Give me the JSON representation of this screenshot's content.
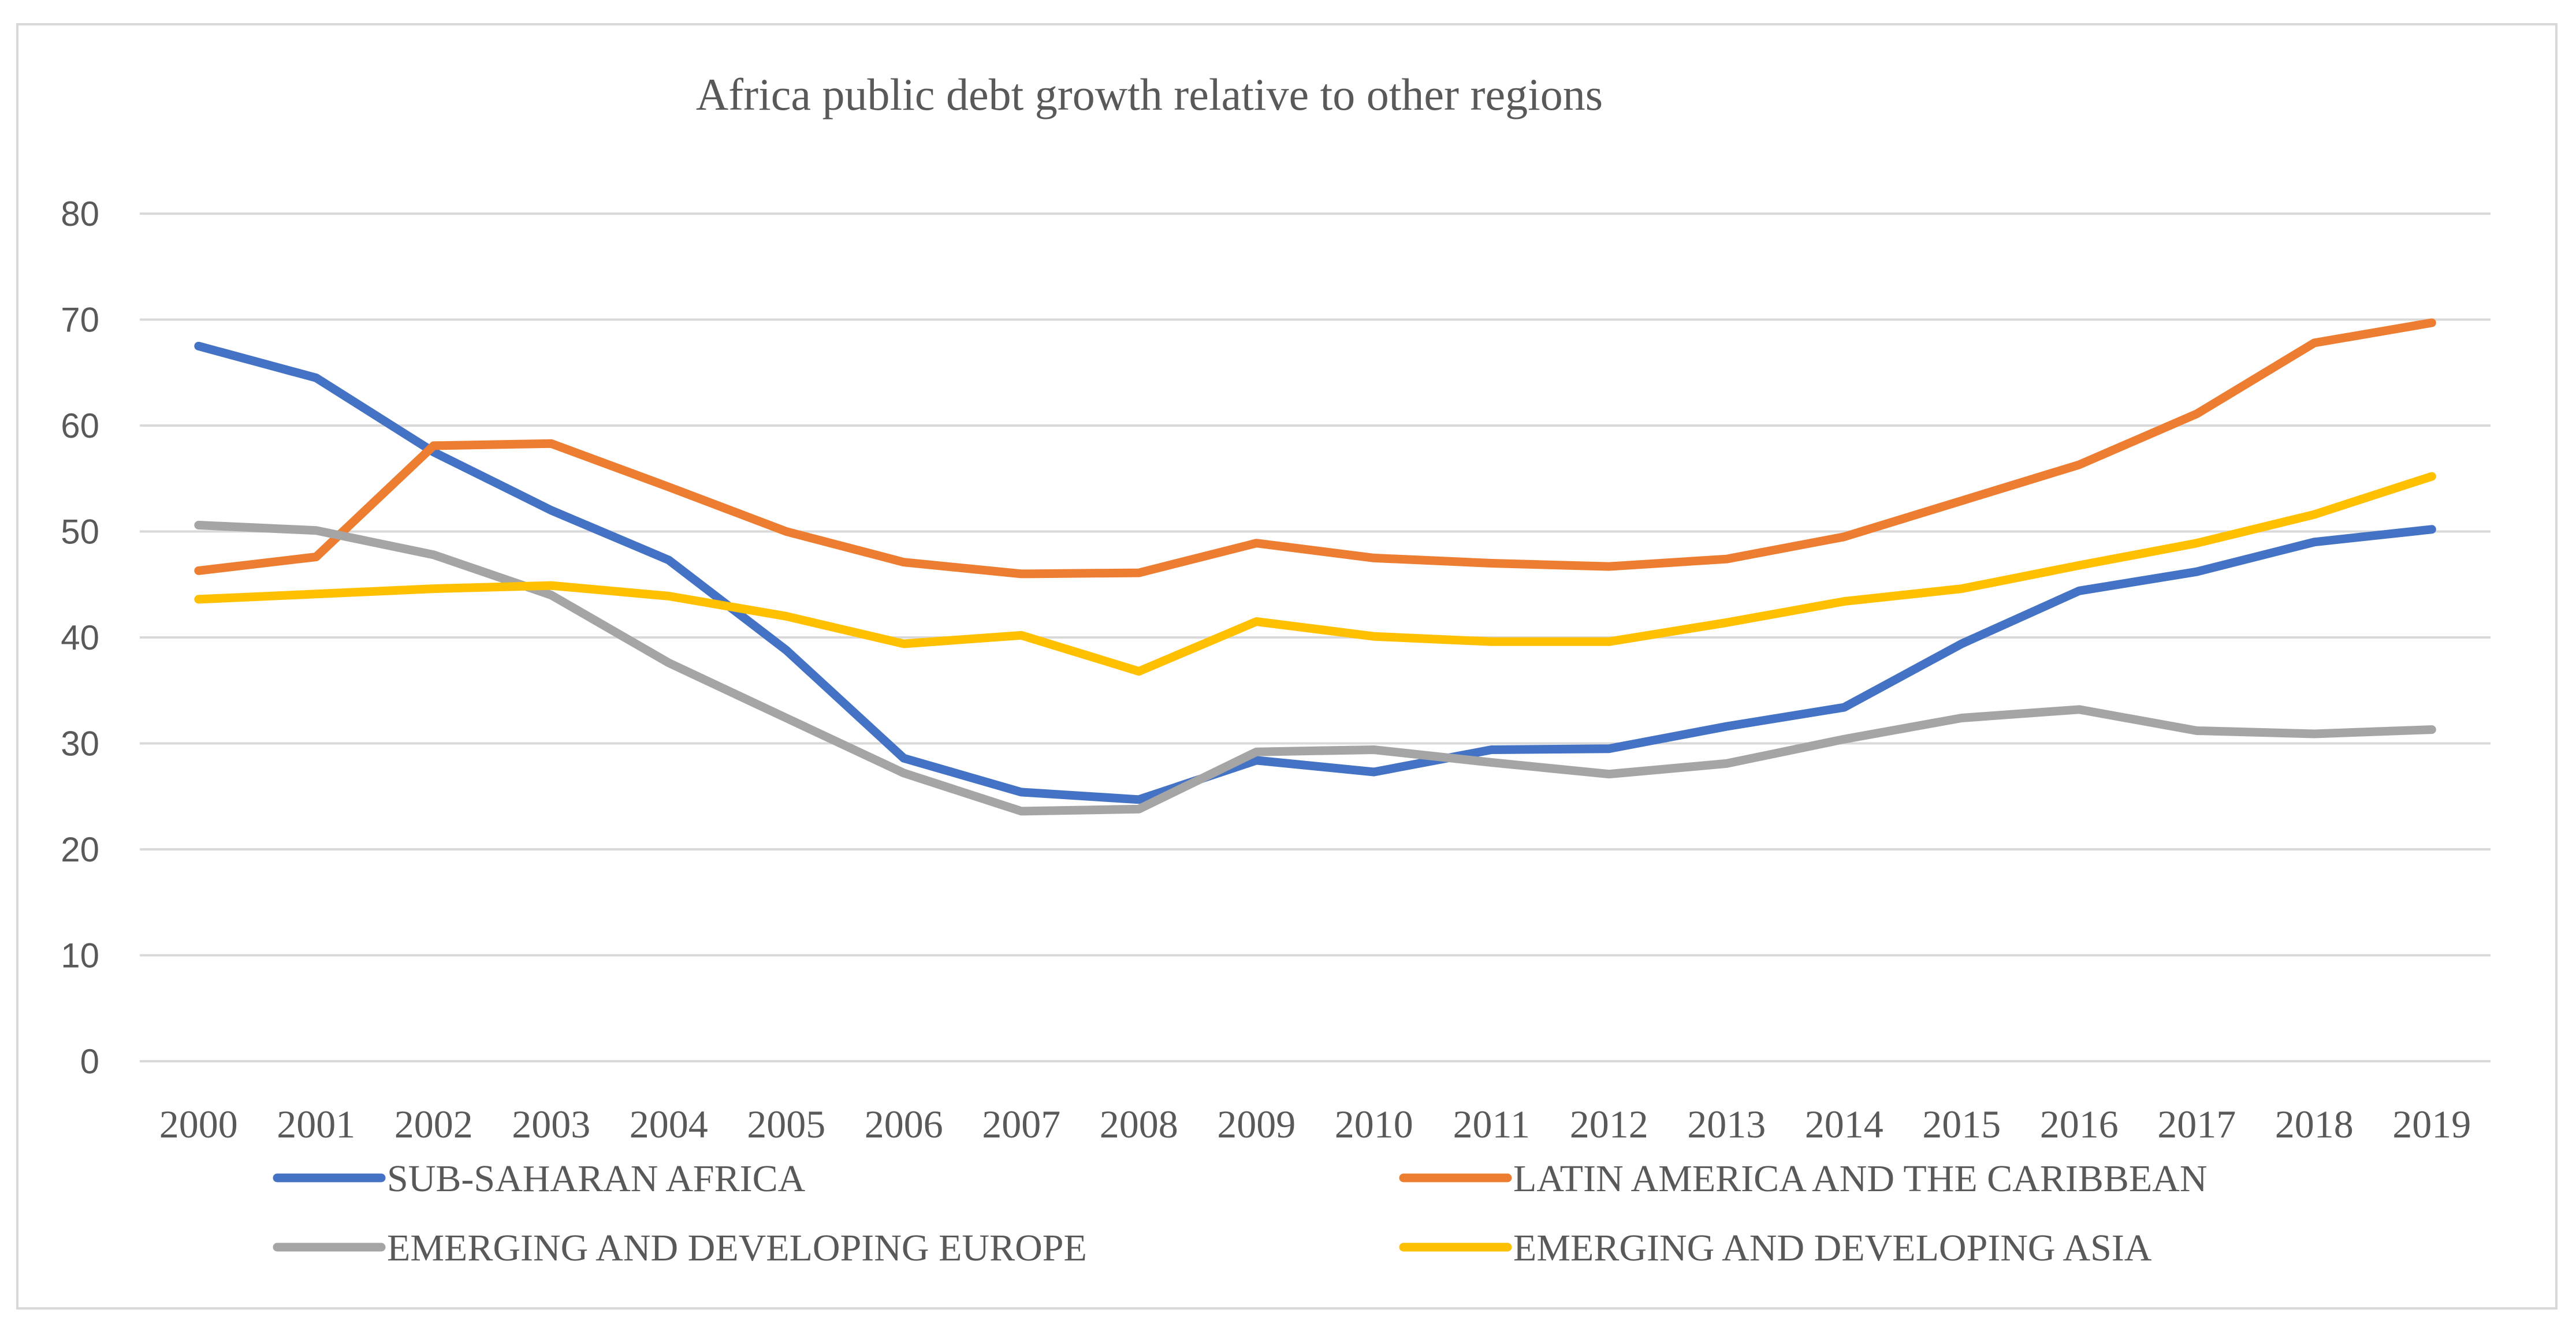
{
  "chart_data": {
    "type": "line",
    "title": "Africa public debt growth relative to other regions",
    "xlabel": "",
    "ylabel": "",
    "ylim": [
      0,
      80
    ],
    "yticks": [
      "0",
      "10",
      "20",
      "30",
      "40",
      "50",
      "60",
      "70",
      "80"
    ],
    "grid": true,
    "legend_position": "bottom",
    "categories": [
      "2000",
      "2001",
      "2002",
      "2003",
      "2004",
      "2005",
      "2006",
      "2007",
      "2008",
      "2009",
      "2010",
      "2011",
      "2012",
      "2013",
      "2014",
      "2015",
      "2016",
      "2017",
      "2018",
      "2019"
    ],
    "series": [
      {
        "name": "SUB-SAHARAN AFRICA",
        "color": "#4472c4",
        "values": [
          67.5,
          64.5,
          57.5,
          52,
          47.3,
          38.8,
          28.6,
          25.4,
          24.7,
          28.4,
          27.3,
          29.4,
          29.5,
          31.6,
          33.4,
          39.4,
          44.4,
          46.2,
          49,
          50.2
        ]
      },
      {
        "name": "LATIN AMERICA AND THE CARIBBEAN",
        "color": "#ed7d31",
        "values": [
          46.3,
          47.6,
          58.1,
          58.3,
          54.2,
          50,
          47.1,
          46,
          46.1,
          48.9,
          47.5,
          47,
          46.7,
          47.4,
          49.5,
          52.9,
          56.3,
          61.1,
          67.8,
          69.7
        ]
      },
      {
        "name": "EMERGING AND DEVELOPING EUROPE",
        "color": "#a5a5a5",
        "values": [
          50.6,
          50.1,
          47.8,
          44,
          37.6,
          32.4,
          27.2,
          23.6,
          23.8,
          29.2,
          29.4,
          28.2,
          27.1,
          28.1,
          30.4,
          32.4,
          33.2,
          31.2,
          30.9,
          31.3
        ]
      },
      {
        "name": "EMERGING AND DEVELOPING ASIA",
        "color": "#ffc000",
        "values": [
          43.6,
          44.1,
          44.6,
          44.9,
          43.9,
          42,
          39.4,
          40.2,
          36.8,
          41.5,
          40.1,
          39.6,
          39.6,
          41.4,
          43.4,
          44.6,
          46.8,
          48.9,
          51.6,
          55.2
        ]
      }
    ]
  }
}
